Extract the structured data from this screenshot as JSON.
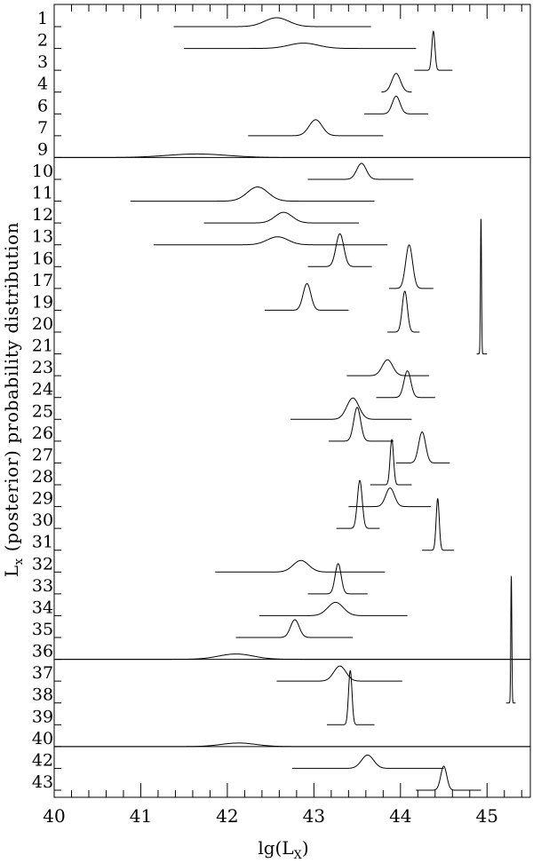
{
  "chart_data": {
    "type": "line",
    "xlabel": "lg(L",
    "xlabel_sub": "X",
    "xlabel_close": ")",
    "ylabel_main": "L",
    "ylabel_sub": "x",
    "ylabel_rest": " (posterior) probability distribution",
    "xlim": [
      40,
      45.5
    ],
    "xticks": [
      "40",
      "41",
      "42",
      "43",
      "44",
      "45"
    ],
    "grid": false,
    "separators_after": [
      "9",
      "36",
      "40"
    ],
    "series": [
      {
        "name": "1",
        "mu": 42.57,
        "sigma": 0.14,
        "amp": 0.5,
        "lo": 41.38,
        "hi": 43.66
      },
      {
        "name": "2",
        "mu": 42.88,
        "sigma": 0.17,
        "amp": 0.3,
        "lo": 41.5,
        "hi": 44.18
      },
      {
        "name": "3",
        "mu": 44.38,
        "sigma": 0.018,
        "amp": 2.2,
        "lo": 44.16,
        "hi": 44.6
      },
      {
        "name": "4",
        "mu": 43.95,
        "sigma": 0.05,
        "amp": 1.05,
        "lo": 43.78,
        "hi": 44.13
      },
      {
        "name": "6",
        "mu": 43.95,
        "sigma": 0.045,
        "amp": 1.0,
        "lo": 43.58,
        "hi": 44.32
      },
      {
        "name": "7",
        "mu": 43.02,
        "sigma": 0.075,
        "amp": 0.9,
        "lo": 42.24,
        "hi": 43.8
      },
      {
        "name": "9",
        "mu": 41.65,
        "sigma": 0.35,
        "amp": 0.2,
        "lo": 40.0,
        "hi": 45.5
      },
      {
        "name": "10",
        "mu": 43.55,
        "sigma": 0.055,
        "amp": 0.9,
        "lo": 42.93,
        "hi": 44.15
      },
      {
        "name": "11",
        "mu": 42.35,
        "sigma": 0.12,
        "amp": 0.8,
        "lo": 40.88,
        "hi": 43.7
      },
      {
        "name": "12",
        "mu": 42.65,
        "sigma": 0.1,
        "amp": 0.6,
        "lo": 41.73,
        "hi": 43.52
      },
      {
        "name": "13",
        "mu": 42.58,
        "sigma": 0.12,
        "amp": 0.45,
        "lo": 41.15,
        "hi": 43.85
      },
      {
        "name": "16",
        "mu": 43.3,
        "sigma": 0.045,
        "amp": 1.85,
        "lo": 42.93,
        "hi": 43.67
      },
      {
        "name": "17",
        "mu": 44.1,
        "sigma": 0.04,
        "amp": 2.45,
        "lo": 43.87,
        "hi": 44.38
      },
      {
        "name": "19",
        "mu": 42.92,
        "sigma": 0.045,
        "amp": 1.5,
        "lo": 42.43,
        "hi": 43.4
      },
      {
        "name": "20",
        "mu": 44.05,
        "sigma": 0.03,
        "amp": 2.3,
        "lo": 43.85,
        "hi": 44.22
      },
      {
        "name": "21",
        "mu": 44.93,
        "sigma": 0.006,
        "amp": 7.6,
        "lo": 44.88,
        "hi": 45.0
      },
      {
        "name": "23",
        "mu": 43.85,
        "sigma": 0.06,
        "amp": 0.9,
        "lo": 43.38,
        "hi": 44.33
      },
      {
        "name": "24",
        "mu": 44.08,
        "sigma": 0.04,
        "amp": 1.5,
        "lo": 43.72,
        "hi": 44.4
      },
      {
        "name": "25",
        "mu": 43.45,
        "sigma": 0.07,
        "amp": 1.2,
        "lo": 42.73,
        "hi": 44.13
      },
      {
        "name": "26",
        "mu": 43.5,
        "sigma": 0.04,
        "amp": 1.9,
        "lo": 43.17,
        "hi": 43.92
      },
      {
        "name": "27",
        "mu": 44.25,
        "sigma": 0.04,
        "amp": 1.75,
        "lo": 43.95,
        "hi": 44.57
      },
      {
        "name": "28",
        "mu": 43.9,
        "sigma": 0.02,
        "amp": 2.55,
        "lo": 43.65,
        "hi": 44.13
      },
      {
        "name": "29",
        "mu": 43.88,
        "sigma": 0.05,
        "amp": 1.05,
        "lo": 43.4,
        "hi": 44.35
      },
      {
        "name": "30",
        "mu": 43.53,
        "sigma": 0.028,
        "amp": 2.7,
        "lo": 43.26,
        "hi": 43.76
      },
      {
        "name": "31",
        "mu": 44.43,
        "sigma": 0.018,
        "amp": 2.9,
        "lo": 44.25,
        "hi": 44.62
      },
      {
        "name": "32",
        "mu": 42.85,
        "sigma": 0.09,
        "amp": 0.65,
        "lo": 41.86,
        "hi": 43.82
      },
      {
        "name": "33",
        "mu": 43.28,
        "sigma": 0.035,
        "amp": 1.7,
        "lo": 42.93,
        "hi": 43.62
      },
      {
        "name": "34",
        "mu": 43.25,
        "sigma": 0.09,
        "amp": 0.75,
        "lo": 42.37,
        "hi": 44.08
      },
      {
        "name": "35",
        "mu": 42.78,
        "sigma": 0.05,
        "amp": 1.0,
        "lo": 42.1,
        "hi": 43.45
      },
      {
        "name": "36",
        "mu": 42.1,
        "sigma": 0.2,
        "amp": 0.3,
        "lo": 40.0,
        "hi": 45.5
      },
      {
        "name": "37",
        "mu": 43.3,
        "sigma": 0.07,
        "amp": 0.85,
        "lo": 42.57,
        "hi": 44.02
      },
      {
        "name": "38",
        "mu": 45.28,
        "sigma": 0.006,
        "amp": 7.1,
        "lo": 45.22,
        "hi": 45.33
      },
      {
        "name": "39",
        "mu": 43.42,
        "sigma": 0.02,
        "amp": 3.05,
        "lo": 43.15,
        "hi": 43.7
      },
      {
        "name": "40",
        "mu": 42.13,
        "sigma": 0.2,
        "amp": 0.2,
        "lo": 40.0,
        "hi": 45.5
      },
      {
        "name": "42",
        "mu": 43.62,
        "sigma": 0.07,
        "amp": 0.75,
        "lo": 42.75,
        "hi": 44.5
      },
      {
        "name": "43",
        "mu": 44.5,
        "sigma": 0.035,
        "amp": 1.35,
        "lo": 44.18,
        "hi": 44.93
      }
    ]
  }
}
